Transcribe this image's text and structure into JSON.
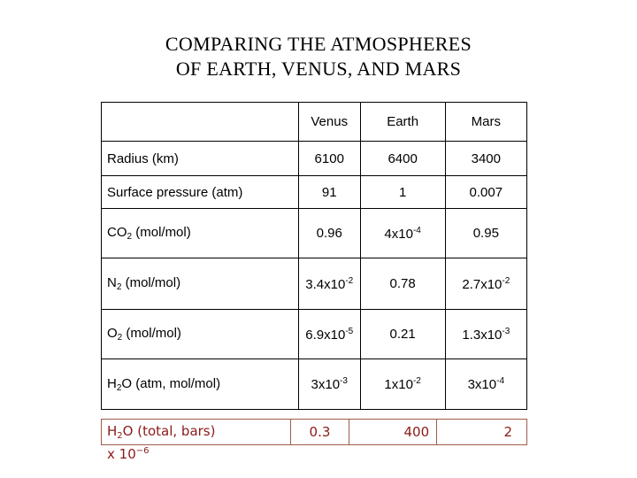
{
  "title": {
    "line1": "COMPARING THE ATMOSPHERES",
    "line2": "OF EARTH, VENUS, AND MARS"
  },
  "table": {
    "headers": [
      "Venus",
      "Earth",
      "Mars"
    ],
    "rows": {
      "radius": {
        "label": "Radius (km)",
        "venus": "6100",
        "earth": "6400",
        "mars": "3400"
      },
      "pressure": {
        "label": "Surface pressure (atm)",
        "venus": "91",
        "earth": "1",
        "mars": "0.007"
      },
      "co2": {
        "label_prefix": "CO",
        "label_sub": "2",
        "label_suffix": " (mol/mol)",
        "venus": "0.96",
        "earth_mant": "4x10",
        "earth_exp": "-4",
        "mars": "0.95"
      },
      "n2": {
        "label_prefix": "N",
        "label_sub": "2",
        "label_suffix": " (mol/mol)",
        "venus_mant": "3.4x10",
        "venus_exp": "-2",
        "earth": "0.78",
        "mars_mant": "2.7x10",
        "mars_exp": "-2"
      },
      "o2": {
        "label_prefix": "O",
        "label_sub": "2",
        "label_suffix": " (mol/mol)",
        "venus_mant": "6.9x10",
        "venus_exp": "-5",
        "earth": "0.21",
        "mars_mant": "1.3x10",
        "mars_exp": "-3"
      },
      "h2o": {
        "label_prefix": "H",
        "label_sub": "2",
        "label_suffix": "O (atm, mol/mol)",
        "venus_mant": "3x10",
        "venus_exp": "-3",
        "earth_mant": "1x10",
        "earth_exp": "-2",
        "mars_mant": "3x10",
        "mars_exp": "-4"
      }
    }
  },
  "total_water": {
    "label_prefix": "H",
    "label_sub": "2",
    "label_suffix": "O (total, bars)",
    "scale_mant": "x 10",
    "scale_exp": "−6",
    "venus": "0.3",
    "earth": "400",
    "mars": "2"
  }
}
